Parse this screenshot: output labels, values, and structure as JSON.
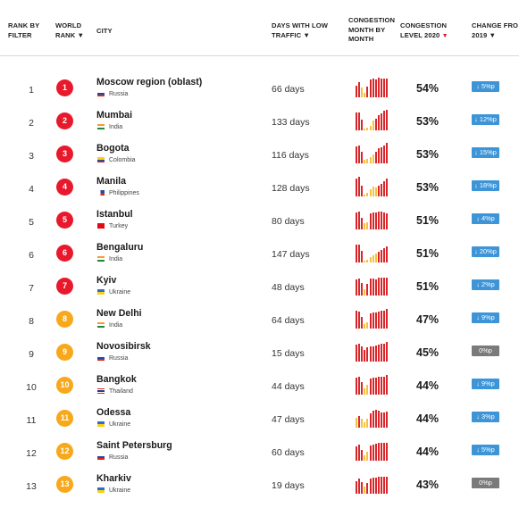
{
  "headers": {
    "rank_by_filter": [
      "RANK BY",
      "FILTER"
    ],
    "world_rank": [
      "WORLD",
      "RANK ▼"
    ],
    "city": "CITY",
    "days_low_traffic": [
      "DAYS WITH LOW",
      "TRAFFIC ▼"
    ],
    "congestion_month": [
      "CONGESTION",
      "MONTH BY",
      "MONTH"
    ],
    "congestion_level": [
      "CONGESTION",
      "LEVEL 2020"
    ],
    "change_from": [
      "CHANGE FRO",
      "2019 ▼"
    ]
  },
  "colors": {
    "rank_red": "#e8192c",
    "rank_orange": "#f7a81b",
    "bar_red": "#d9262a",
    "bar_yellow": "#f5c23c",
    "change_down": "#3d95d8",
    "change_zero": "#7a7a7a"
  },
  "rows": [
    {
      "rank_filter": "1",
      "world_rank": "1",
      "rank_color": "red",
      "city": "Moscow region (oblast)",
      "country": "Russia",
      "flag": "russia",
      "days": "66 days",
      "months": [
        0.55,
        0.7,
        0.45,
        0.22,
        0.5,
        0.85,
        0.88,
        0.85,
        0.9,
        0.88,
        0.88,
        0.88
      ],
      "level": "54%",
      "change": "↓ 5%p",
      "change_type": "down"
    },
    {
      "rank_filter": "2",
      "world_rank": "2",
      "rank_color": "red",
      "city": "Mumbai",
      "country": "India",
      "flag": "india",
      "days": "133 days",
      "months": [
        0.85,
        0.85,
        0.5,
        0.1,
        0.12,
        0.2,
        0.45,
        0.55,
        0.7,
        0.8,
        0.9,
        0.95
      ],
      "level": "53%",
      "change": "↓ 12%p",
      "change_type": "down"
    },
    {
      "rank_filter": "3",
      "world_rank": "3",
      "rank_color": "red",
      "city": "Bogota",
      "country": "Colombia",
      "flag": "colombia",
      "days": "116 days",
      "months": [
        0.8,
        0.85,
        0.55,
        0.15,
        0.2,
        0.3,
        0.4,
        0.55,
        0.7,
        0.75,
        0.85,
        0.95
      ],
      "level": "53%",
      "change": "↓ 15%p",
      "change_type": "down"
    },
    {
      "rank_filter": "4",
      "world_rank": "4",
      "rank_color": "red",
      "city": "Manila",
      "country": "Philippines",
      "flag": "philippines",
      "days": "128 days",
      "months": [
        0.85,
        0.9,
        0.5,
        0.1,
        0.15,
        0.35,
        0.45,
        0.4,
        0.5,
        0.6,
        0.7,
        0.85
      ],
      "level": "53%",
      "change": "↓ 18%p",
      "change_type": "down"
    },
    {
      "rank_filter": "5",
      "world_rank": "5",
      "rank_color": "red",
      "city": "Istanbul",
      "country": "Turkey",
      "flag": "turkey",
      "days": "80 days",
      "months": [
        0.8,
        0.85,
        0.55,
        0.3,
        0.35,
        0.75,
        0.8,
        0.8,
        0.85,
        0.85,
        0.8,
        0.75
      ],
      "level": "51%",
      "change": "↓ 4%p",
      "change_type": "down"
    },
    {
      "rank_filter": "6",
      "world_rank": "6",
      "rank_color": "red",
      "city": "Bengaluru",
      "country": "India",
      "flag": "india",
      "days": "147 days",
      "months": [
        0.85,
        0.85,
        0.55,
        0.1,
        0.12,
        0.25,
        0.35,
        0.4,
        0.5,
        0.6,
        0.65,
        0.75
      ],
      "level": "51%",
      "change": "↓ 20%p",
      "change_type": "down"
    },
    {
      "rank_filter": "7",
      "world_rank": "7",
      "rank_color": "red",
      "city": "Kyiv",
      "country": "Ukraine",
      "flag": "ukraine",
      "days": "48 days",
      "months": [
        0.75,
        0.8,
        0.6,
        0.3,
        0.55,
        0.8,
        0.8,
        0.75,
        0.85,
        0.85,
        0.85,
        0.85
      ],
      "level": "51%",
      "change": "↓ 2%p",
      "change_type": "down"
    },
    {
      "rank_filter": "8",
      "world_rank": "8",
      "rank_color": "orange",
      "city": "New Delhi",
      "country": "India",
      "flag": "india",
      "days": "64 days",
      "months": [
        0.85,
        0.8,
        0.55,
        0.2,
        0.3,
        0.7,
        0.75,
        0.75,
        0.8,
        0.85,
        0.85,
        0.9
      ],
      "level": "47%",
      "change": "↓ 9%p",
      "change_type": "down"
    },
    {
      "rank_filter": "9",
      "world_rank": "9",
      "rank_color": "orange",
      "city": "Novosibirsk",
      "country": "Russia",
      "flag": "russia",
      "days": "15 days",
      "months": [
        0.8,
        0.85,
        0.7,
        0.55,
        0.65,
        0.7,
        0.7,
        0.75,
        0.8,
        0.85,
        0.85,
        0.9
      ],
      "level": "45%",
      "change": "0%p",
      "change_type": "zero"
    },
    {
      "rank_filter": "10",
      "world_rank": "10",
      "rank_color": "orange",
      "city": "Bangkok",
      "country": "Thailand",
      "flag": "thailand",
      "days": "44 days",
      "months": [
        0.8,
        0.85,
        0.6,
        0.3,
        0.45,
        0.75,
        0.8,
        0.8,
        0.85,
        0.85,
        0.85,
        0.9
      ],
      "level": "44%",
      "change": "↓ 9%p",
      "change_type": "down"
    },
    {
      "rank_filter": "11",
      "world_rank": "11",
      "rank_color": "orange",
      "city": "Odessa",
      "country": "Ukraine",
      "flag": "ukraine",
      "days": "47 days",
      "months": [
        0.45,
        0.55,
        0.4,
        0.25,
        0.4,
        0.65,
        0.8,
        0.85,
        0.8,
        0.7,
        0.7,
        0.75
      ],
      "level": "44%",
      "change": "↓ 3%p",
      "change_type": "down"
    },
    {
      "rank_filter": "12",
      "world_rank": "12",
      "rank_color": "orange",
      "city": "Saint Petersburg",
      "country": "Russia",
      "flag": "russia",
      "days": "60 days",
      "months": [
        0.65,
        0.75,
        0.5,
        0.25,
        0.4,
        0.7,
        0.75,
        0.8,
        0.85,
        0.85,
        0.85,
        0.85
      ],
      "level": "44%",
      "change": "↓ 5%p",
      "change_type": "down"
    },
    {
      "rank_filter": "13",
      "world_rank": "13",
      "rank_color": "orange",
      "city": "Kharkiv",
      "country": "Ukraine",
      "flag": "ukraine",
      "days": "19 days",
      "months": [
        0.6,
        0.7,
        0.55,
        0.35,
        0.5,
        0.7,
        0.75,
        0.75,
        0.8,
        0.8,
        0.8,
        0.8
      ],
      "level": "43%",
      "change": "0%p",
      "change_type": "zero"
    }
  ]
}
